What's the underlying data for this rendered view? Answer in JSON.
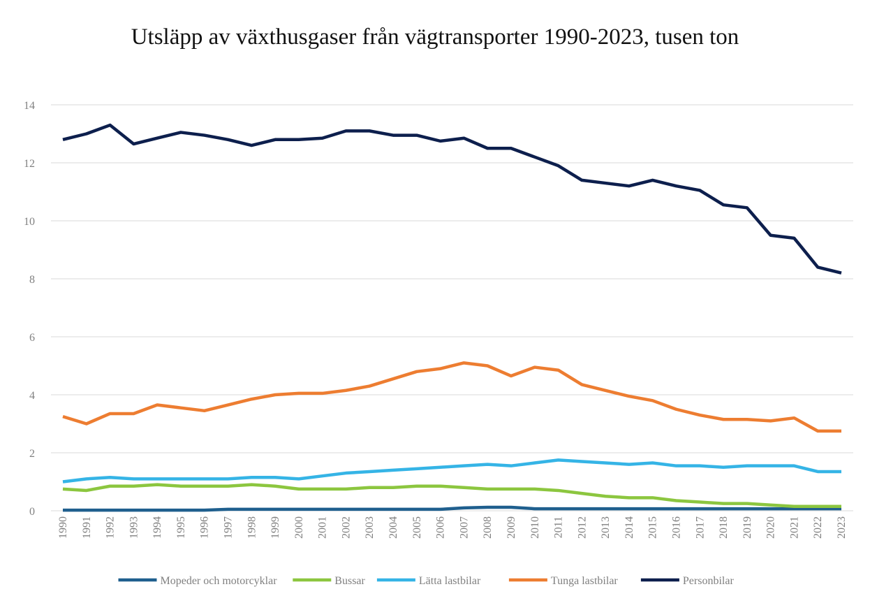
{
  "chart_data": {
    "type": "line",
    "title": "Utsläpp av växthusgaser från vägtransporter 1990-2023, tusen ton",
    "categories": [
      "1990",
      "1991",
      "1992",
      "1993",
      "1994",
      "1995",
      "1996",
      "1997",
      "1998",
      "1999",
      "2000",
      "2001",
      "2002",
      "2003",
      "2004",
      "2005",
      "2006",
      "2007",
      "2008",
      "2009",
      "2010",
      "2011",
      "2012",
      "2013",
      "2014",
      "2015",
      "2016",
      "2017",
      "2018",
      "2019",
      "2020",
      "2021",
      "2022",
      "2023"
    ],
    "series": [
      {
        "name": "Mopeder och motorcyklar",
        "color": "#1f5f8e",
        "values": [
          0.02,
          0.02,
          0.02,
          0.02,
          0.02,
          0.02,
          0.02,
          0.05,
          0.05,
          0.05,
          0.05,
          0.05,
          0.05,
          0.05,
          0.05,
          0.05,
          0.05,
          0.1,
          0.12,
          0.12,
          0.07,
          0.07,
          0.07,
          0.07,
          0.07,
          0.07,
          0.07,
          0.07,
          0.07,
          0.07,
          0.07,
          0.07,
          0.07,
          0.07
        ]
      },
      {
        "name": "Bussar",
        "color": "#8cc63f",
        "values": [
          0.75,
          0.7,
          0.85,
          0.85,
          0.9,
          0.85,
          0.85,
          0.85,
          0.9,
          0.85,
          0.75,
          0.75,
          0.75,
          0.8,
          0.8,
          0.85,
          0.85,
          0.8,
          0.75,
          0.75,
          0.75,
          0.7,
          0.6,
          0.5,
          0.45,
          0.45,
          0.35,
          0.3,
          0.25,
          0.25,
          0.2,
          0.15,
          0.15,
          0.15
        ]
      },
      {
        "name": "Lätta lastbilar",
        "color": "#35b4e6",
        "values": [
          1.0,
          1.1,
          1.15,
          1.1,
          1.1,
          1.1,
          1.1,
          1.1,
          1.15,
          1.15,
          1.1,
          1.2,
          1.3,
          1.35,
          1.4,
          1.45,
          1.5,
          1.55,
          1.6,
          1.55,
          1.65,
          1.75,
          1.7,
          1.65,
          1.6,
          1.65,
          1.55,
          1.55,
          1.5,
          1.55,
          1.55,
          1.55,
          1.35,
          1.35
        ]
      },
      {
        "name": "Tunga lastbilar",
        "color": "#ed7d31",
        "values": [
          3.25,
          3.0,
          3.35,
          3.35,
          3.65,
          3.55,
          3.45,
          3.65,
          3.85,
          4.0,
          4.05,
          4.05,
          4.15,
          4.3,
          4.55,
          4.8,
          4.9,
          5.1,
          5.0,
          4.65,
          4.95,
          4.85,
          4.35,
          4.15,
          3.95,
          3.8,
          3.5,
          3.3,
          3.15,
          3.15,
          3.1,
          3.2,
          2.75,
          2.75
        ]
      },
      {
        "name": "Personbilar",
        "color": "#0d1f4d",
        "values": [
          12.8,
          13.0,
          13.3,
          12.65,
          12.85,
          13.05,
          12.95,
          12.8,
          12.6,
          12.8,
          12.8,
          12.85,
          13.1,
          13.1,
          12.95,
          12.95,
          12.75,
          12.85,
          12.5,
          12.5,
          12.2,
          11.9,
          11.4,
          11.3,
          11.2,
          11.4,
          11.2,
          11.05,
          10.55,
          10.45,
          9.5,
          9.4,
          8.4,
          8.2
        ]
      }
    ],
    "ylim": [
      0,
      14
    ],
    "yticks": [
      0,
      2,
      4,
      6,
      8,
      10,
      12,
      14
    ],
    "grid": true,
    "legend": "bottom"
  }
}
